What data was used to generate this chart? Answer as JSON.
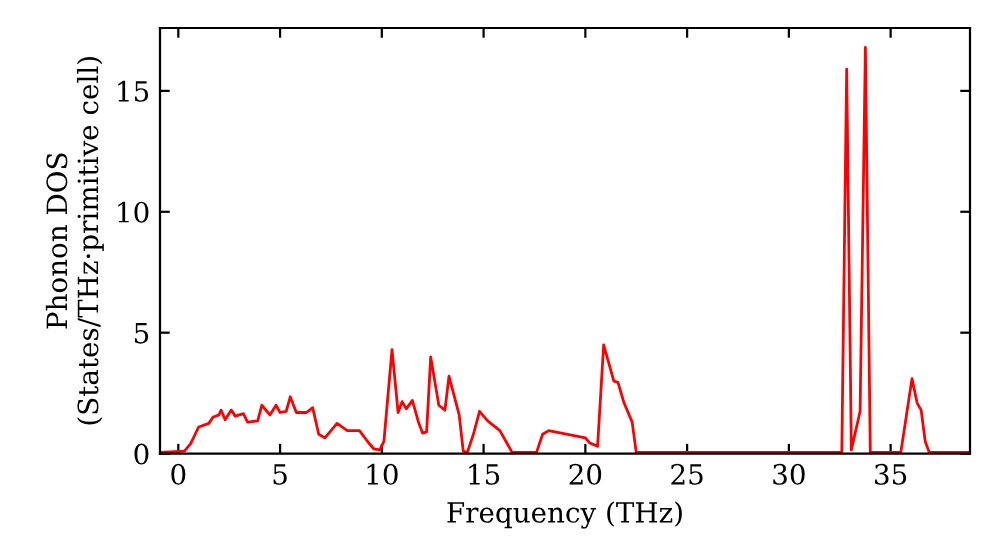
{
  "chart_data": {
    "type": "line",
    "xlabel": "Frequency (THz)",
    "ylabel": "Phonon DOS\n(States/THz·primitive cell)",
    "x": [
      -0.9,
      0.3,
      0.6,
      1.0,
      1.5,
      1.7,
      2.0,
      2.1,
      2.3,
      2.6,
      2.8,
      3.2,
      3.4,
      3.9,
      4.1,
      4.5,
      4.8,
      5.0,
      5.3,
      5.5,
      5.8,
      6.3,
      6.6,
      6.9,
      7.2,
      7.8,
      8.3,
      8.9,
      9.3,
      9.6,
      9.9,
      10.1,
      10.5,
      10.8,
      11.0,
      11.2,
      11.5,
      11.8,
      12.0,
      12.2,
      12.4,
      12.8,
      13.1,
      13.3,
      13.8,
      14.0,
      14.2,
      14.5,
      14.8,
      15.2,
      15.8,
      16.4,
      17.6,
      17.9,
      18.2,
      20.0,
      20.2,
      20.6,
      20.9,
      21.4,
      21.6,
      21.9,
      22.3,
      22.5,
      32.6,
      32.84,
      33.07,
      33.5,
      33.76,
      34.0,
      35.5,
      36.05,
      36.3,
      36.5,
      36.7,
      36.9,
      38.9
    ],
    "series": [
      {
        "color": "#ff0000",
        "values": [
          0.05,
          0.1,
          0.4,
          1.1,
          1.25,
          1.5,
          1.6,
          1.8,
          1.4,
          1.8,
          1.55,
          1.65,
          1.3,
          1.35,
          2.0,
          1.6,
          2.0,
          1.7,
          1.75,
          2.35,
          1.7,
          1.7,
          1.9,
          0.8,
          0.65,
          1.25,
          0.95,
          0.95,
          0.5,
          0.2,
          0.15,
          0.5,
          4.3,
          1.7,
          2.15,
          1.85,
          2.2,
          1.3,
          0.85,
          0.9,
          4.0,
          2.0,
          1.8,
          3.2,
          1.6,
          0.1,
          0.05,
          0.8,
          1.75,
          1.35,
          0.95,
          0.05,
          0.05,
          0.8,
          0.95,
          0.65,
          0.45,
          0.3,
          4.5,
          3.0,
          2.95,
          2.1,
          1.3,
          0.05,
          0.05,
          15.9,
          0.15,
          1.75,
          16.8,
          0.05,
          0.05,
          3.1,
          2.1,
          1.8,
          0.5,
          0.05,
          0.05
        ]
      }
    ],
    "xlim": [
      -0.9,
      38.9
    ],
    "ylim": [
      0,
      17.6
    ],
    "xticks": [
      0,
      5,
      10,
      15,
      20,
      25,
      30,
      35
    ],
    "yticks": [
      0,
      5,
      10,
      15
    ],
    "grid": false,
    "legend": false,
    "marker": "none",
    "line_style": "solid"
  }
}
